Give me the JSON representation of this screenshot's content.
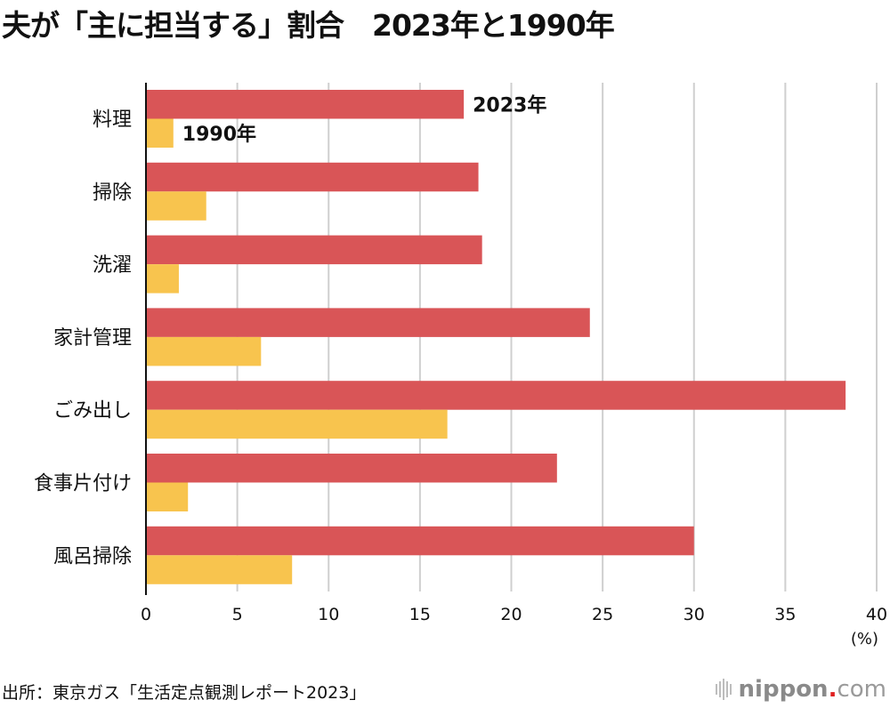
{
  "chart_data": {
    "type": "bar",
    "orientation": "horizontal",
    "title": "夫が「主に担当する」割合　2023年と1990年",
    "categories": [
      "料理",
      "掃除",
      "洗濯",
      "家計管理",
      "ごみ出し",
      "食事片付け",
      "風呂掃除"
    ],
    "series": [
      {
        "name": "2023年",
        "color": "#d95557",
        "values": [
          17.4,
          18.2,
          18.4,
          24.3,
          38.3,
          22.5,
          30.0
        ]
      },
      {
        "name": "1990年",
        "color": "#f8c44e",
        "values": [
          1.5,
          3.3,
          1.8,
          6.3,
          16.5,
          2.3,
          8.0
        ]
      }
    ],
    "xlabel": "(%)",
    "ylabel": "",
    "xlim": [
      0,
      40
    ],
    "xticks": [
      0,
      5,
      10,
      15,
      20,
      25,
      30,
      35,
      40
    ],
    "grid": true,
    "legend": "inline labels on first category"
  },
  "source": "出所：東京ガス「生活定点観測レポート2023」",
  "logo": {
    "word": "nippon",
    "dot": ".",
    "tld": "com"
  }
}
